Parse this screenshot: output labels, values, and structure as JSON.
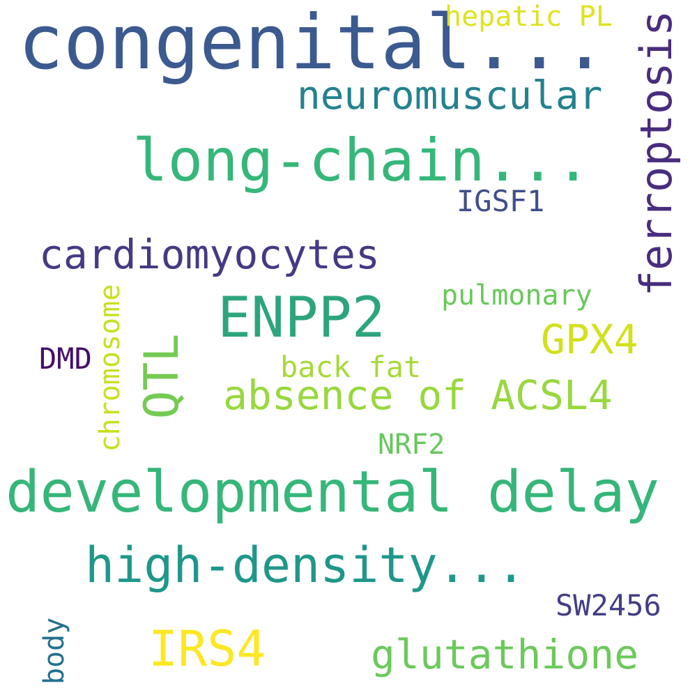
{
  "cloud": {
    "words": {
      "congenital": "congenital...",
      "hepatic": "hepatic PL",
      "neuromuscular": "neuromuscular",
      "longchain": "long-chain...",
      "ferroptosis": "ferroptosis",
      "igsf1": "IGSF1",
      "cardiomyocytes": "cardiomyocytes",
      "pulmonary": "pulmonary",
      "enpp2": "ENPP2",
      "chromosome": "chromosome",
      "qtl": "QTL",
      "gpx4": "GPX4",
      "dmd": "DMD",
      "backfat": "back fat",
      "acsl4": "absence of ACSL4",
      "nrf2": "NRF2",
      "devdelay": "developmental delay",
      "hdl": "high-density...",
      "sw2456": "SW2456",
      "body": "body",
      "irs4": "IRS4",
      "glutathione": "glutathione"
    },
    "colors": {
      "congenital": "#3b5a8f",
      "hepatic": "#dde31f",
      "neuromuscular": "#23828e",
      "longchain": "#35b779",
      "ferroptosis": "#482d7e",
      "igsf1": "#3e4f8a",
      "cardiomyocytes": "#443a83",
      "pulmonary": "#69c85b",
      "enpp2": "#2da57c",
      "chromosome": "#c7e01f",
      "qtl": "#74ca52",
      "gpx4": "#d1e11c",
      "dmd": "#440f68",
      "backfat": "#a6d93a",
      "acsl4": "#98d83e",
      "nrf2": "#66c75d",
      "devdelay": "#36b679",
      "hdl": "#1f978b",
      "sw2456": "#433e85",
      "body": "#23718e",
      "irs4": "#fde725",
      "glutathione": "#6cc95b"
    }
  }
}
